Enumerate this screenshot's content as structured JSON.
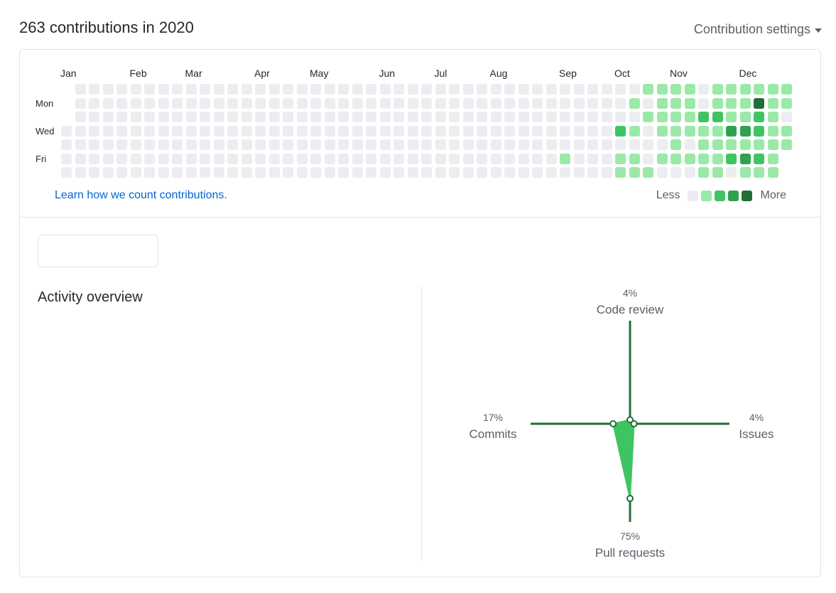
{
  "header": {
    "title": "263 contributions in 2020",
    "settings_label": "Contribution settings"
  },
  "calendar": {
    "months": [
      "Jan",
      "Feb",
      "Mar",
      "Apr",
      "May",
      "Jun",
      "Jul",
      "Aug",
      "Sep",
      "Oct",
      "Nov",
      "Dec"
    ],
    "day_labels": [
      "Mon",
      "Wed",
      "Fri"
    ],
    "learn_link": "Learn how we count contributions.",
    "legend": {
      "less": "Less",
      "more": "More"
    },
    "colors": [
      "#ebedf0",
      "#9be9a8",
      "#40c463",
      "#30a14e",
      "#216e39"
    ],
    "weeks": [
      [
        -1,
        -1,
        -1,
        0,
        0,
        0,
        0
      ],
      [
        0,
        0,
        0,
        0,
        0,
        0,
        0
      ],
      [
        0,
        0,
        0,
        0,
        0,
        0,
        0
      ],
      [
        0,
        0,
        0,
        0,
        0,
        0,
        0
      ],
      [
        0,
        0,
        0,
        0,
        0,
        0,
        0
      ],
      [
        0,
        0,
        0,
        0,
        0,
        0,
        0
      ],
      [
        0,
        0,
        0,
        0,
        0,
        0,
        0
      ],
      [
        0,
        0,
        0,
        0,
        0,
        0,
        0
      ],
      [
        0,
        0,
        0,
        0,
        0,
        0,
        0
      ],
      [
        0,
        0,
        0,
        0,
        0,
        0,
        0
      ],
      [
        0,
        0,
        0,
        0,
        0,
        0,
        0
      ],
      [
        0,
        0,
        0,
        0,
        0,
        0,
        0
      ],
      [
        0,
        0,
        0,
        0,
        0,
        0,
        0
      ],
      [
        0,
        0,
        0,
        0,
        0,
        0,
        0
      ],
      [
        0,
        0,
        0,
        0,
        0,
        0,
        0
      ],
      [
        0,
        0,
        0,
        0,
        0,
        0,
        0
      ],
      [
        0,
        0,
        0,
        0,
        0,
        0,
        0
      ],
      [
        0,
        0,
        0,
        0,
        0,
        0,
        0
      ],
      [
        0,
        0,
        0,
        0,
        0,
        0,
        0
      ],
      [
        0,
        0,
        0,
        0,
        0,
        0,
        0
      ],
      [
        0,
        0,
        0,
        0,
        0,
        0,
        0
      ],
      [
        0,
        0,
        0,
        0,
        0,
        0,
        0
      ],
      [
        0,
        0,
        0,
        0,
        0,
        0,
        0
      ],
      [
        0,
        0,
        0,
        0,
        0,
        0,
        0
      ],
      [
        0,
        0,
        0,
        0,
        0,
        0,
        0
      ],
      [
        0,
        0,
        0,
        0,
        0,
        0,
        0
      ],
      [
        0,
        0,
        0,
        0,
        0,
        0,
        0
      ],
      [
        0,
        0,
        0,
        0,
        0,
        0,
        0
      ],
      [
        0,
        0,
        0,
        0,
        0,
        0,
        0
      ],
      [
        0,
        0,
        0,
        0,
        0,
        0,
        0
      ],
      [
        0,
        0,
        0,
        0,
        0,
        0,
        0
      ],
      [
        0,
        0,
        0,
        0,
        0,
        0,
        0
      ],
      [
        0,
        0,
        0,
        0,
        0,
        0,
        0
      ],
      [
        0,
        0,
        0,
        0,
        0,
        0,
        0
      ],
      [
        0,
        0,
        0,
        0,
        0,
        0,
        0
      ],
      [
        0,
        0,
        0,
        0,
        0,
        0,
        0
      ],
      [
        0,
        0,
        0,
        0,
        0,
        1,
        0
      ],
      [
        0,
        0,
        0,
        0,
        0,
        0,
        0
      ],
      [
        0,
        0,
        0,
        0,
        0,
        0,
        0
      ],
      [
        0,
        0,
        0,
        0,
        0,
        0,
        0
      ],
      [
        0,
        0,
        0,
        2,
        0,
        1,
        1
      ],
      [
        0,
        1,
        0,
        1,
        0,
        1,
        1
      ],
      [
        1,
        0,
        1,
        0,
        0,
        0,
        1
      ],
      [
        1,
        1,
        1,
        1,
        0,
        1,
        0
      ],
      [
        1,
        1,
        1,
        1,
        1,
        1,
        0
      ],
      [
        1,
        1,
        1,
        1,
        0,
        1,
        0
      ],
      [
        0,
        0,
        2,
        1,
        1,
        1,
        1
      ],
      [
        1,
        1,
        2,
        1,
        1,
        1,
        1
      ],
      [
        1,
        1,
        1,
        3,
        1,
        2,
        0
      ],
      [
        1,
        1,
        1,
        3,
        1,
        3,
        1
      ],
      [
        1,
        4,
        2,
        2,
        1,
        2,
        1
      ],
      [
        1,
        1,
        1,
        1,
        1,
        1,
        1
      ],
      [
        1,
        1,
        0,
        1,
        1,
        -1,
        -1
      ]
    ]
  },
  "overview": {
    "title": "Activity overview",
    "axes": [
      {
        "pct": "4%",
        "label": "Code review",
        "value": 4
      },
      {
        "pct": "4%",
        "label": "Issues",
        "value": 4
      },
      {
        "pct": "75%",
        "label": "Pull requests",
        "value": 75
      },
      {
        "pct": "17%",
        "label": "Commits",
        "value": 17
      }
    ],
    "colors": {
      "axis": "#216e39",
      "fill": "#40c463",
      "point_fill": "#ffffff"
    }
  }
}
